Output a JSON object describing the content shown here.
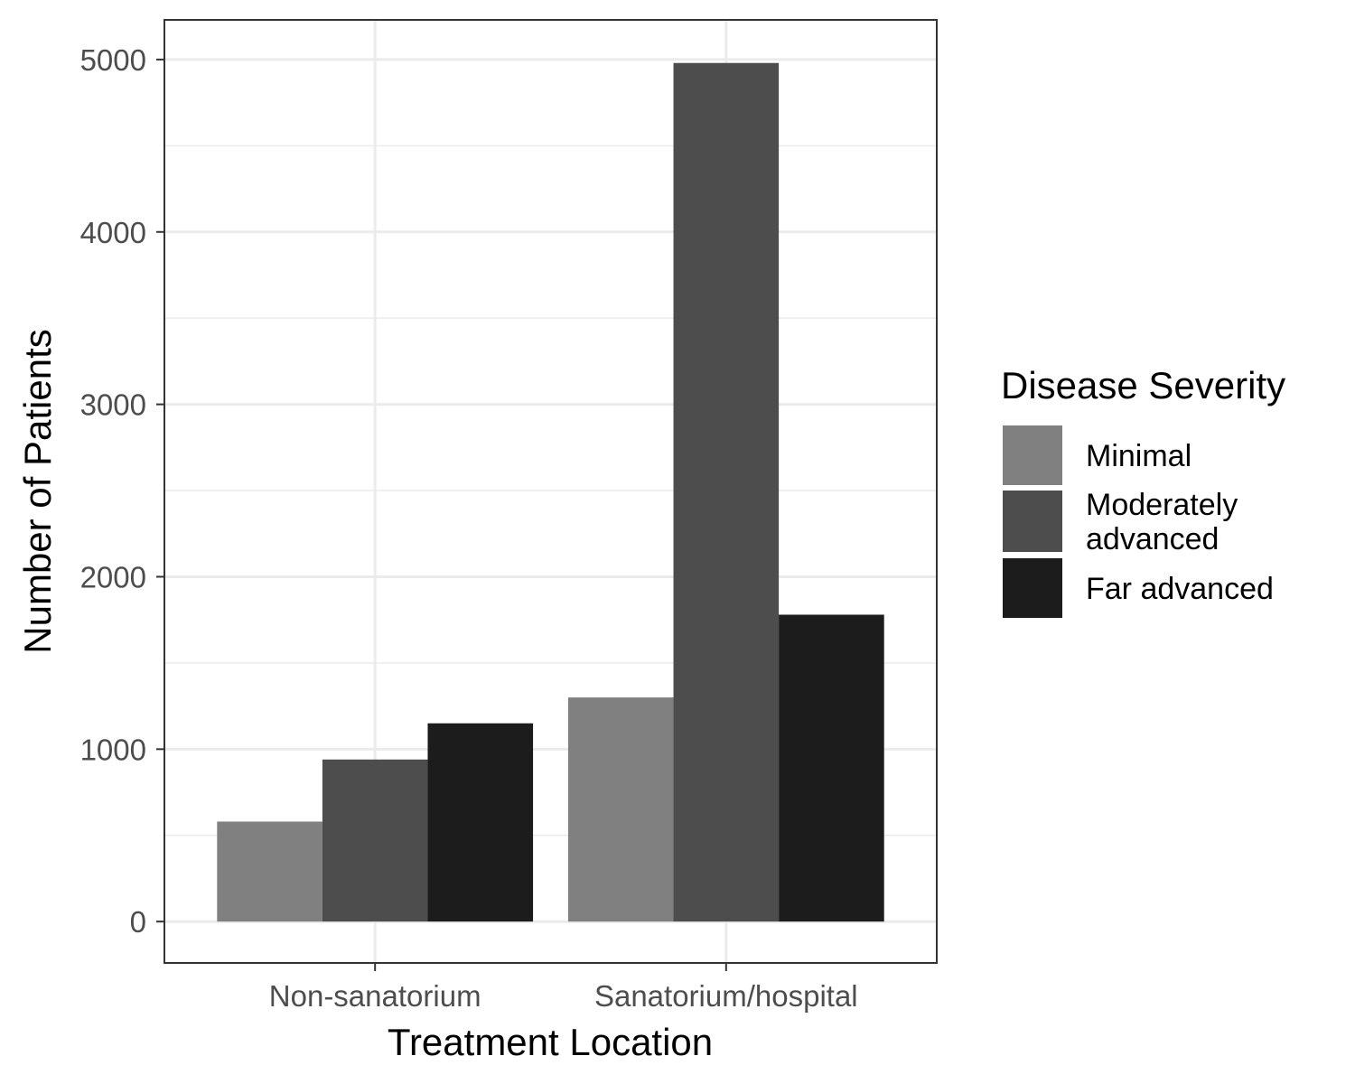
{
  "chart_data": {
    "type": "bar",
    "xlabel": "Treatment Location",
    "ylabel": "Number of Patients",
    "categories": [
      "Non-sanatorium",
      "Sanatorium/hospital"
    ],
    "series": [
      {
        "name": "Minimal",
        "values": [
          580,
          1300
        ],
        "color": "#808080"
      },
      {
        "name": "Moderately advanced",
        "values": [
          940,
          4980
        ],
        "color": "#4d4d4d"
      },
      {
        "name": "Far advanced",
        "values": [
          1150,
          1780
        ],
        "color": "#1c1c1c"
      }
    ],
    "ylim": [
      -240,
      5230
    ],
    "yticks": [
      0,
      1000,
      2000,
      3000,
      4000,
      5000
    ],
    "grid": true,
    "legend": {
      "title": "Disease Severity",
      "placement": "right",
      "labels": [
        [
          "Minimal"
        ],
        [
          "Moderately",
          "advanced"
        ],
        [
          "Far advanced"
        ]
      ]
    }
  }
}
